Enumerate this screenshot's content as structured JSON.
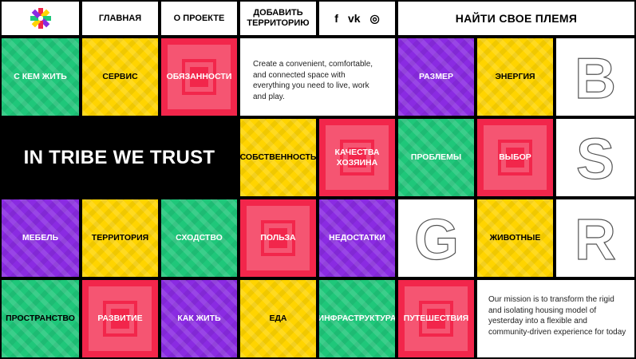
{
  "nav": {
    "home": "ГЛАВНАЯ",
    "about": "О ПРОЕКТЕ",
    "add_territory": "ДОБАВИТЬ ТЕРРИТОРИЮ",
    "find_tribe": "НАЙТИ СВОЕ ПЛЕМЯ"
  },
  "social": {
    "facebook": "f",
    "vk": "vk",
    "instagram": "◎"
  },
  "hero": {
    "text": "IN TRIBE WE TRUST"
  },
  "intro_text": "Create a convenient, comfortable, and connected space with everything you need to live, work and play.",
  "mission_text": "Our mission is to transform the rigid and isolating housing model of yesterday into a flexible and community-driven experience for today",
  "tiles": {
    "with_whom": "С КЕМ ЖИТЬ",
    "service": "СЕРВИС",
    "duties": "ОБЯЗАННОСТИ",
    "size": "РАЗМЕР",
    "energy": "ЭНЕРГИЯ",
    "property": "СОБСТВЕННОСТЬ",
    "host_qualities": "КАЧЕСТВА ХОЗЯИНА",
    "problems": "ПРОБЛЕМЫ",
    "choice": "ВЫБОР",
    "furniture": "МЕБЕЛЬ",
    "territory": "ТЕРРИТОРИЯ",
    "similarity": "СХОДСТВО",
    "benefit": "ПОЛЬЗА",
    "drawbacks": "НЕДОСТАТКИ",
    "animals": "ЖИВОТНЫЕ",
    "space": "ПРОСТРАНСТВО",
    "development": "РАЗВИТИЕ",
    "how_to_live": "КАК ЖИТЬ",
    "food": "ЕДА",
    "infrastructure": "ИНФРАСТРУКТУРА",
    "travel": "ПУТЕШЕСТВИЯ"
  },
  "letters": {
    "b": "B",
    "s": "S",
    "g": "G",
    "r": "R"
  },
  "colors": {
    "green": "#1fc77a",
    "yellow": "#ffd400",
    "red": "#f2264b",
    "purple": "#8a2be2"
  }
}
